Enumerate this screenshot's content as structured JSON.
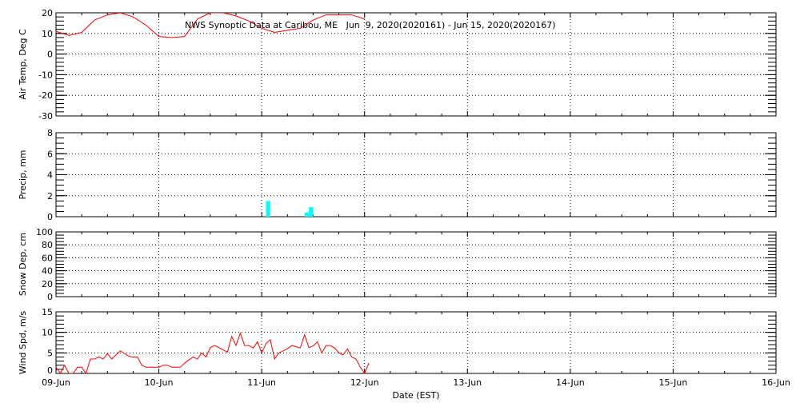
{
  "title": "NWS Synoptic Data at Caribou, ME   Jun  9, 2020(2020161) - Jun 15, 2020(2020167)",
  "colors": {
    "temp": "#ff0000",
    "precip": "#00ffff",
    "wind": "#ff0000",
    "axis": "#000000"
  },
  "chart_data": [
    {
      "type": "line",
      "ylabel": "Air Temp, Deg C",
      "ylim": [
        -30,
        20
      ],
      "yticks": [
        "20",
        "10",
        "0",
        "-10",
        "-20",
        "-30"
      ],
      "grid": true,
      "start": "2020-06-09 00:00",
      "interval_hours": 3,
      "values": [
        11,
        9,
        10.5,
        16.5,
        19,
        20,
        18,
        14,
        8.5,
        8,
        8.5,
        17,
        20,
        20,
        18.5,
        16,
        12.5,
        10.5,
        11.5,
        12.5,
        16.5,
        19,
        19,
        19,
        17
      ]
    },
    {
      "type": "bar",
      "ylabel": "Precip, mm",
      "ylim": [
        0,
        8
      ],
      "yticks": [
        "8",
        "6",
        "4",
        "2",
        "0"
      ],
      "grid": true,
      "bars": [
        {
          "time": "2020-06-11 01:00",
          "value": 1.5
        },
        {
          "time": "2020-06-11 10:00",
          "value": 0.4
        },
        {
          "time": "2020-06-11 11:00",
          "value": 0.9
        }
      ]
    },
    {
      "type": "line",
      "ylabel": "Snow Dep, cm",
      "ylim": [
        0,
        100
      ],
      "yticks": [
        "100",
        "80",
        "60",
        "40",
        "20",
        "0"
      ],
      "grid": true,
      "values": []
    },
    {
      "type": "line",
      "ylabel": "Wind Spd, m/s",
      "xlabel": "Date (EST)",
      "ylim": [
        0,
        15
      ],
      "yticks": [
        "15",
        "10",
        "5",
        "0"
      ],
      "grid": true,
      "start": "2020-06-09 00:00",
      "interval_hours": 1,
      "values": [
        1.5,
        0,
        2,
        0,
        0,
        1.5,
        1.5,
        0,
        3.5,
        3.5,
        4,
        3.5,
        4.8,
        3.5,
        4.5,
        5.5,
        4.8,
        4.2,
        4,
        4,
        2,
        1.5,
        1.5,
        1.5,
        1.5,
        2,
        2,
        1.5,
        1.5,
        1.5,
        2.5,
        3.3,
        4,
        3.5,
        5,
        4,
        6.3,
        6.8,
        6.3,
        5.7,
        5.2,
        9,
        6.8,
        9.8,
        6.8,
        6.8,
        6.2,
        7.7,
        5,
        7.3,
        8.2,
        3.5,
        5,
        5.5,
        6,
        6.8,
        6.5,
        6.2,
        9.4,
        6.3,
        6.7,
        7.7,
        5,
        6.8,
        6.8,
        6.2,
        5,
        4.5,
        6,
        4,
        3.5,
        1.5,
        0,
        2.5
      ]
    }
  ],
  "xaxis": {
    "labels": [
      "09-Jun",
      "10-Jun",
      "11-Jun",
      "12-Jun",
      "13-Jun",
      "14-Jun",
      "15-Jun",
      "16-Jun"
    ],
    "xlim": [
      "2020-06-09 00:00",
      "2020-06-16 00:00"
    ]
  }
}
